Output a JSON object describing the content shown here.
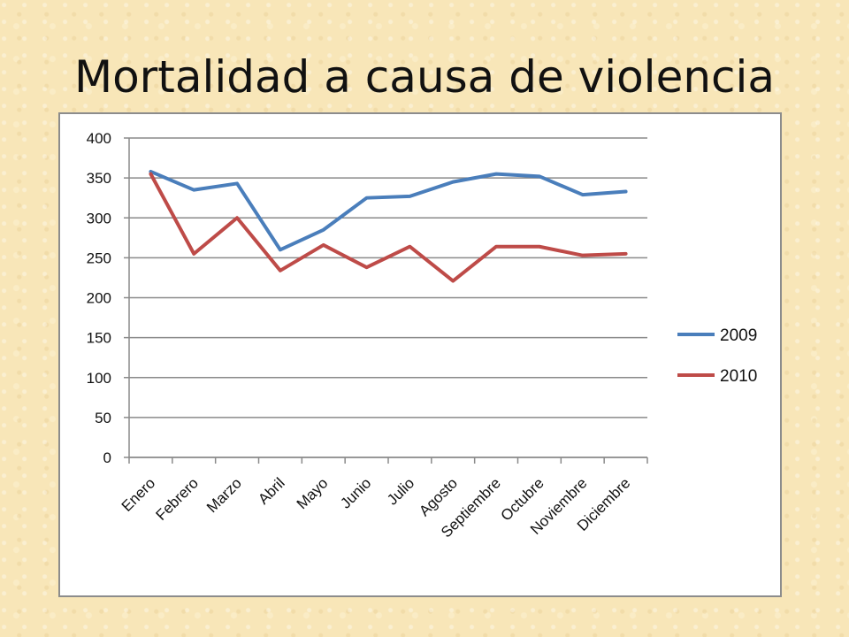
{
  "slide": {
    "title": "Mortalidad a causa de violencia"
  },
  "chart_data": {
    "type": "line",
    "title": "",
    "xlabel": "",
    "ylabel": "",
    "categories": [
      "Enero",
      "Febrero",
      "Marzo",
      "Abril",
      "Mayo",
      "Junio",
      "Julio",
      "Agosto",
      "Septiembre",
      "Octubre",
      "Noviembre",
      "Diciembre"
    ],
    "ylim": [
      0,
      400
    ],
    "yticks": [
      0,
      50,
      100,
      150,
      200,
      250,
      300,
      350,
      400
    ],
    "grid": true,
    "legend_position": "right",
    "series": [
      {
        "name": "2009",
        "color": "#4a7ebb",
        "values": [
          358,
          335,
          343,
          260,
          285,
          325,
          327,
          345,
          355,
          352,
          329,
          333
        ]
      },
      {
        "name": "2010",
        "color": "#be4b48",
        "values": [
          355,
          255,
          300,
          234,
          266,
          238,
          264,
          221,
          264,
          264,
          253,
          255
        ]
      }
    ]
  }
}
